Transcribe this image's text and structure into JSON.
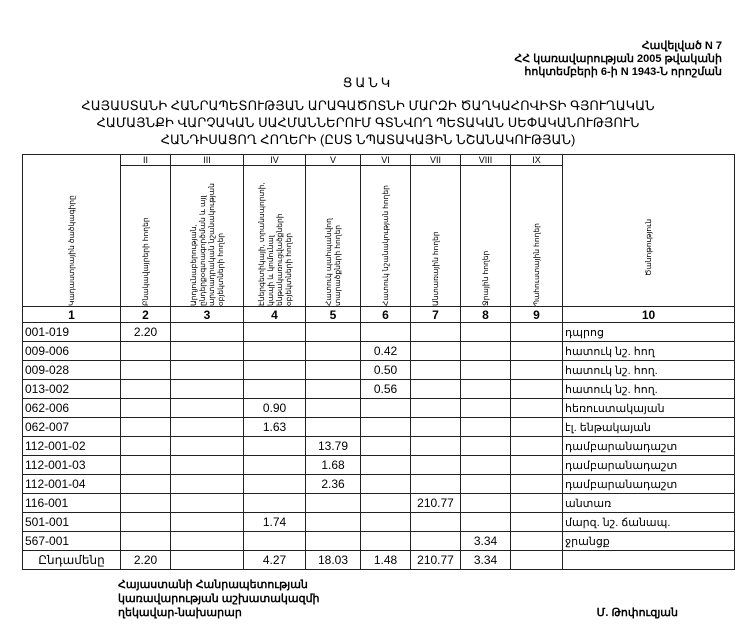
{
  "annex": [
    "Հավելված N 7",
    "ՀՀ կառավարության 2005 թվականի",
    "հոկտեմբերի 6-ի N 1943-Ն որոշման"
  ],
  "title": "ՑԱՆԿ",
  "subtitle": [
    "ՀԱՅԱՍՏԱՆԻ ՀԱՆՐԱՊԵՏՈՒԹՅԱՆ ԱՐԱԳԱԾՈՏՆԻ ՄԱՐԶԻ ԾԱՂԿԱՀՈՎԻՏԻ ԳՅՈՒՂԱԿԱՆ",
    "ՀԱՄԱՅՆՔԻ ՎԱՐՉԱԿԱՆ ՍԱՀՄԱՆՆԵՐՈՒՄ ԳՏՆՎՈՂ ՊԵՏԱԿԱՆ ՍԵՓԱԿԱՆՈՒԹՅՈՒՆ",
    "ՀԱՆԴԻՍԱՑՈՂ ՀՈՂԵՐԻ (ԸՍՏ ՆՊԱՏԱԿԱՅԻՆ ՆՇԱՆԱԿՈՒԹՅԱՆ)"
  ],
  "table": {
    "roman": [
      "II",
      "III",
      "IV",
      "V",
      "VI",
      "VII",
      "VIII",
      "IX"
    ],
    "headers": [
      "Կադաստրային ծածկագիրը",
      "Բնակավայրերի հողեր",
      "Արդյունաբերության, ընդերքօգտագործման և այլ արտադրական նշանակության օբյեկտների հողեր",
      "Էներգետիկայի, տրանսպորտի, կապի և կոմունալ ենթակառուցվածքների օբյեկտների հողեր",
      "Հատուկ պահպանվող տարածքների հողեր",
      "Հատուկ նշանակության հողեր",
      "Անտառային հողեր",
      "Ջրային հողեր",
      "Պահուստային հողեր",
      "Ծանոթություն"
    ],
    "numbers": [
      "1",
      "2",
      "3",
      "4",
      "5",
      "6",
      "7",
      "8",
      "9",
      "10"
    ],
    "rows": [
      [
        "001-019",
        "2.20",
        "",
        "",
        "",
        "",
        "",
        "",
        "",
        "դպրոց"
      ],
      [
        "009-006",
        "",
        "",
        "",
        "",
        "0.42",
        "",
        "",
        "",
        "հատուկ նշ. հող"
      ],
      [
        "009-028",
        "",
        "",
        "",
        "",
        "0.50",
        "",
        "",
        "",
        "հատուկ նշ. հող."
      ],
      [
        "013-002",
        "",
        "",
        "",
        "",
        "0.56",
        "",
        "",
        "",
        "հատուկ նշ. հող."
      ],
      [
        "062-006",
        "",
        "",
        "0.90",
        "",
        "",
        "",
        "",
        "",
        "հեռուստակայան"
      ],
      [
        "062-007",
        "",
        "",
        "1.63",
        "",
        "",
        "",
        "",
        "",
        "էլ. ենթակայան"
      ],
      [
        "112-001-02",
        "",
        "",
        "",
        "13.79",
        "",
        "",
        "",
        "",
        "դամբարանադաշտ"
      ],
      [
        "112-001-03",
        "",
        "",
        "",
        "1.68",
        "",
        "",
        "",
        "",
        "դամբարանադաշտ"
      ],
      [
        "112-001-04",
        "",
        "",
        "",
        "2.36",
        "",
        "",
        "",
        "",
        "դամբարանադաշտ"
      ],
      [
        "116-001",
        "",
        "",
        "",
        "",
        "",
        "210.77",
        "",
        "",
        "անտառ"
      ],
      [
        "501-001",
        "",
        "",
        "1.74",
        "",
        "",
        "",
        "",
        "",
        "մարզ. նշ. ճանապ."
      ],
      [
        "567-001",
        "",
        "",
        "",
        "",
        "",
        "",
        "3.34",
        "",
        "ջրանցք"
      ]
    ],
    "total": [
      "Ընդամենը",
      "2.20",
      "",
      "4.27",
      "18.03",
      "1.48",
      "210.77",
      "3.34",
      "",
      ""
    ]
  },
  "footer": [
    "Հայաստանի Հանրապետության",
    "կառավարության աշխատակազմի",
    "ղեկավար-նախարար"
  ],
  "signature": "Մ. Թոփուզյան"
}
